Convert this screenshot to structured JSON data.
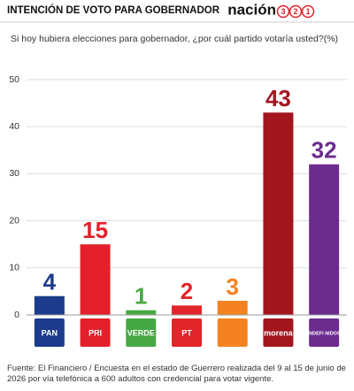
{
  "chart_data": {
    "type": "bar",
    "title": "INTENCIÓN DE VOTO PARA GOBERNADOR",
    "brand": {
      "name": "nación",
      "digits": [
        "3",
        "2",
        "1"
      ]
    },
    "subtitle": "Si hoy hubiera elecciones para gobernador, ¿por cuál partido votaría usted?(%)",
    "categories": [
      "PAN",
      "PRI",
      "VERDE",
      "PT",
      null,
      "morena",
      "INDEFI NIDOS"
    ],
    "values": [
      4,
      15,
      1,
      2,
      3,
      43,
      32
    ],
    "colors": [
      "#1c3b8c",
      "#e3202b",
      "#46a843",
      "#e1252b",
      "#f58220",
      "#a3161e",
      "#6b2c8e"
    ],
    "ylim": [
      0,
      50
    ],
    "yticks": [
      0,
      10,
      20,
      30,
      40,
      50
    ],
    "grid": true,
    "source": "Fuente: El Financiero / Encuesta en el estado de Guerrero realizada del 9 al 15 de junio de 2026 por vía telefónica a 600 adultos con credencial para votar vigente."
  }
}
